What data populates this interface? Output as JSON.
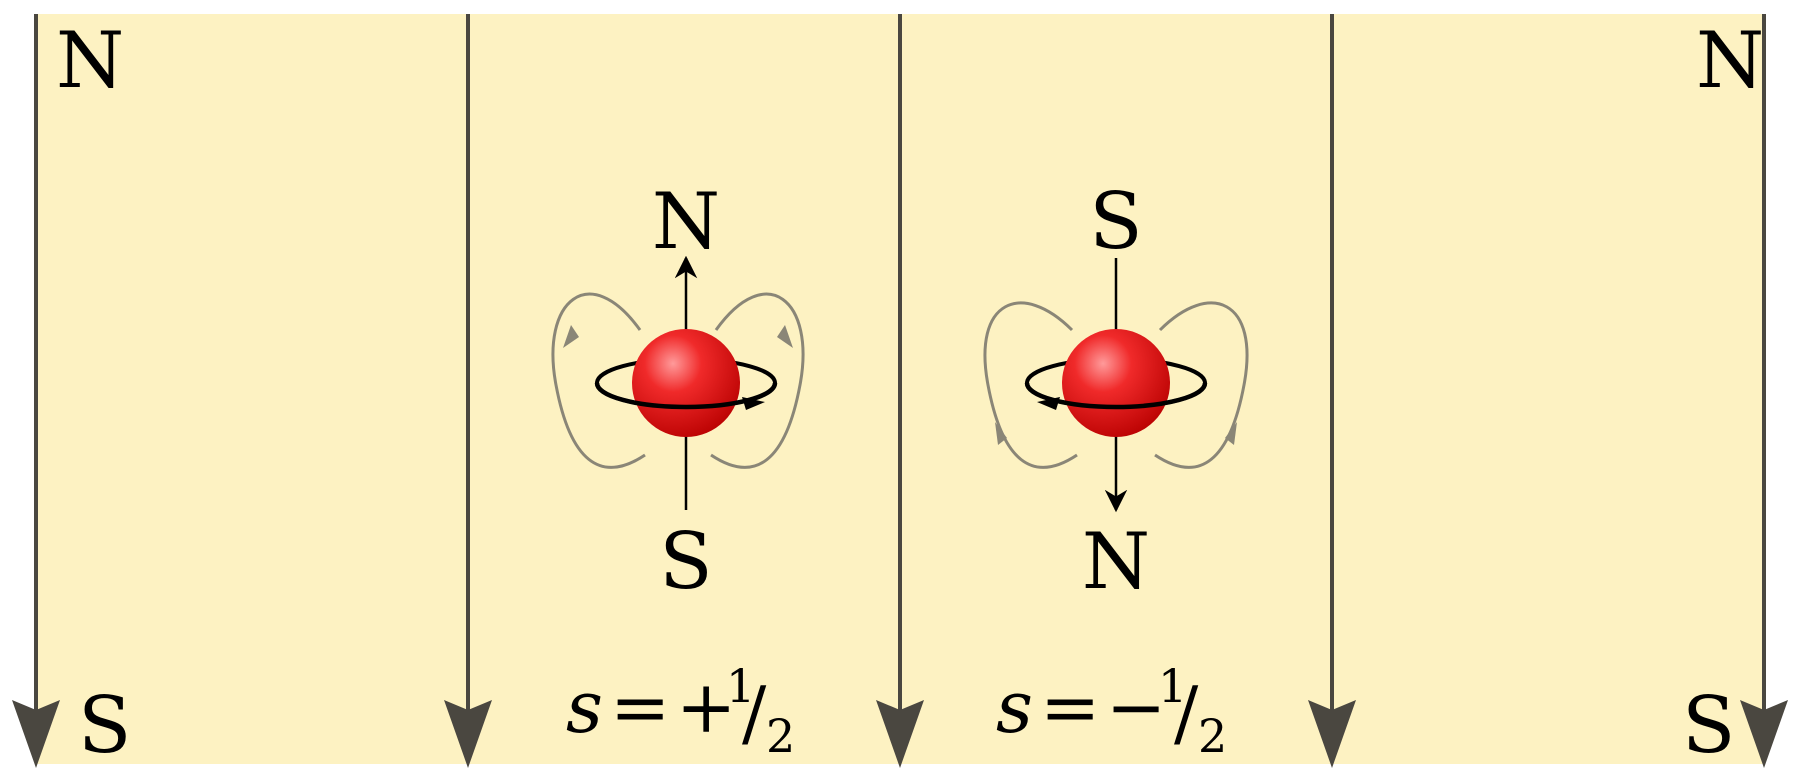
{
  "colors": {
    "background_band": "#fdf2c2",
    "field_line": "#4a4740",
    "dipole_loop": "#8a8677",
    "particle": "#e01818",
    "axis": "#000000"
  },
  "external_field": {
    "top_left_pole": "N",
    "top_right_pole": "N",
    "bottom_left_pole": "S",
    "bottom_right_pole": "S"
  },
  "spin_up": {
    "top_pole": "N",
    "bottom_pole": "S",
    "label": {
      "symbol": "s",
      "equals": "=",
      "sign": "+",
      "numerator": "1",
      "slash": "/",
      "denominator": "2"
    }
  },
  "spin_down": {
    "top_pole": "S",
    "bottom_pole": "N",
    "label": {
      "symbol": "s",
      "equals": "=",
      "sign": "−",
      "numerator": "1",
      "slash": "/",
      "denominator": "2"
    }
  }
}
